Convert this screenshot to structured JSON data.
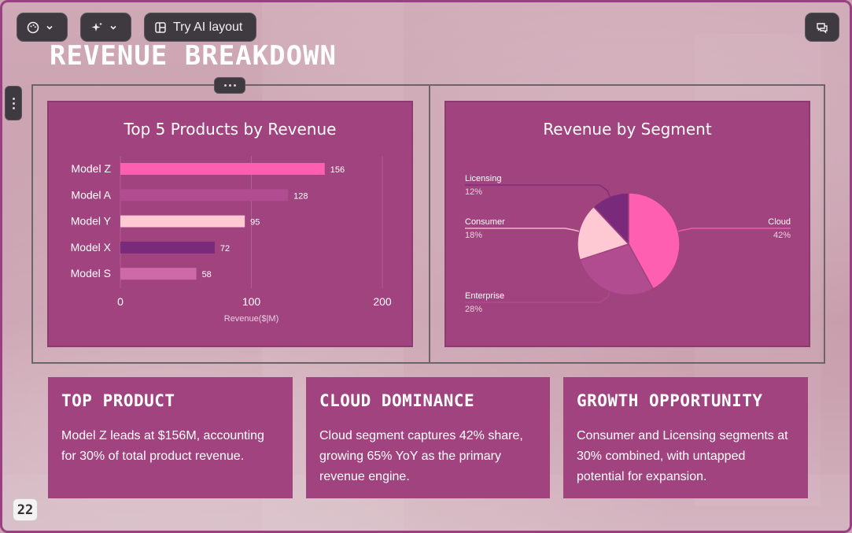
{
  "toolbar": {
    "theme_icon": "palette-icon",
    "ai_icon": "sparkles-icon",
    "ai_layout_label": "Try AI layout",
    "comment_icon": "chat-icon"
  },
  "slide": {
    "title": "Revenue Breakdown",
    "page_number": "22"
  },
  "charts": {
    "bar": {
      "title": "Top 5 Products by Revenue",
      "xlabel": "Revenue($|M)"
    },
    "pie": {
      "title": "Revenue by Segment"
    }
  },
  "chart_data": [
    {
      "type": "bar",
      "orientation": "horizontal",
      "title": "Top 5 Products by Revenue",
      "categories": [
        "Model Z",
        "Model A",
        "Model Y",
        "Model X",
        "Model S"
      ],
      "values": [
        156,
        128,
        95,
        72,
        58
      ],
      "colors": [
        "#ff5fb0",
        "#b04c8f",
        "#ffc9d4",
        "#7a2a7a",
        "#cf6aa8"
      ],
      "xlabel": "Revenue($|M)",
      "ylabel": "",
      "xlim": [
        0,
        200
      ],
      "xticks": [
        0,
        100,
        200
      ],
      "grid": true
    },
    {
      "type": "pie",
      "title": "Revenue by Segment",
      "slices": [
        {
          "label": "Cloud",
          "value": 42,
          "pct": "42%",
          "color": "#ff5fb0"
        },
        {
          "label": "Enterprise",
          "value": 28,
          "pct": "28%",
          "color": "#b04c8f"
        },
        {
          "label": "Consumer",
          "value": 18,
          "pct": "18%",
          "color": "#ffc9d4"
        },
        {
          "label": "Licensing",
          "value": 12,
          "pct": "12%",
          "color": "#7a2a7a"
        }
      ]
    }
  ],
  "cards": [
    {
      "title": "Top Product",
      "body": "Model Z leads at $156M, accounting for 30% of total product revenue."
    },
    {
      "title": "Cloud Dominance",
      "body": "Cloud segment captures 42% share, growing 65% YoY as the primary revenue engine."
    },
    {
      "title": "Growth Opportunity",
      "body": "Consumer and Licensing segments at 30% combined, with untapped potential for expansion."
    }
  ]
}
